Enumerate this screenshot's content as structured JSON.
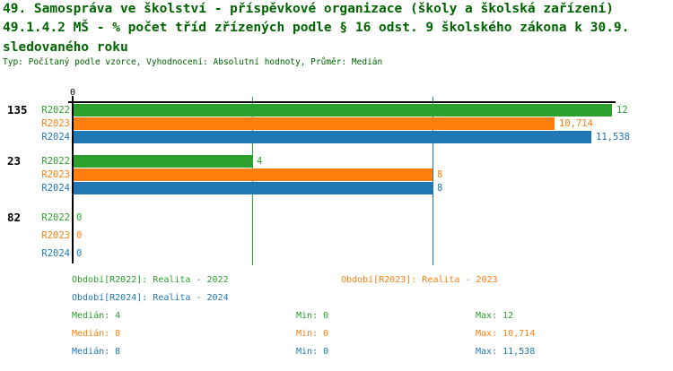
{
  "title": {
    "line1": "49. Samospráva ve školství - příspěvkové organizace (školy a školská zařízení)",
    "line2": "49.1.4.2 MŠ - % počet tříd zřízených podle § 16 odst. 9 školského zákona k 30.9.",
    "line3": "sledovaného roku",
    "meta": "Typ: Počítaný podle vzorce, Vyhodnocení: Absolutní hodnoty, Průměr: Medián"
  },
  "colors": {
    "title": "#006400",
    "green": "#2ca02c",
    "orange": "#ff7f0e",
    "blue": "#1f77b4",
    "axis": "#000000"
  },
  "chart_data": {
    "type": "bar",
    "orientation": "horizontal",
    "title": "49.1.4.2 MŠ - % počet tříd zřízených podle § 16 odst. 9 školského zákona k 30.9. sledovaného roku",
    "xlim": [
      0,
      12
    ],
    "x_tick_labels": [
      "0"
    ],
    "categories": [
      "135",
      "23",
      "82"
    ],
    "series_names": [
      "R2022",
      "R2023",
      "R2024"
    ],
    "groups": [
      {
        "category": "135",
        "rows": [
          {
            "name": "R2022",
            "color": "green",
            "value": 12,
            "label": "12"
          },
          {
            "name": "R2023",
            "color": "orange",
            "value": 10.714,
            "label": "10,714"
          },
          {
            "name": "R2024",
            "color": "blue",
            "value": 11.538,
            "label": "11,538"
          }
        ]
      },
      {
        "category": "23",
        "rows": [
          {
            "name": "R2022",
            "color": "green",
            "value": 4,
            "label": "4"
          },
          {
            "name": "R2023",
            "color": "orange",
            "value": 8,
            "label": "8"
          },
          {
            "name": "R2024",
            "color": "blue",
            "value": 8,
            "label": "8"
          }
        ]
      },
      {
        "category": "82",
        "rows": [
          {
            "name": "R2022",
            "color": "green",
            "value": 0,
            "label": "0"
          },
          {
            "name": "R2023",
            "color": "orange",
            "value": 0,
            "label": "0"
          },
          {
            "name": "R2024",
            "color": "blue",
            "value": 0,
            "label": "0"
          }
        ]
      }
    ],
    "median_lines": [
      {
        "color": "green",
        "value": 4
      },
      {
        "color": "orange",
        "value": 8
      },
      {
        "color": "blue",
        "value": 8
      }
    ]
  },
  "legend": {
    "period_rows": [
      [
        {
          "text": "Období[R2022]: Realita - 2022",
          "color": "green"
        },
        {
          "text": "Období[R2023]: Realita - 2023",
          "color": "orange"
        }
      ],
      [
        {
          "text": "Období[R2024]: Realita - 2024",
          "color": "blue"
        }
      ]
    ],
    "stat_rows": [
      {
        "color": "green",
        "cells": [
          "Medián: 4",
          "Min: 0",
          "Max: 12"
        ]
      },
      {
        "color": "orange",
        "cells": [
          "Medián: 8",
          "Min: 0",
          "Max: 10,714"
        ]
      },
      {
        "color": "blue",
        "cells": [
          "Medián: 8",
          "Min: 0",
          "Max: 11,538"
        ]
      }
    ]
  }
}
